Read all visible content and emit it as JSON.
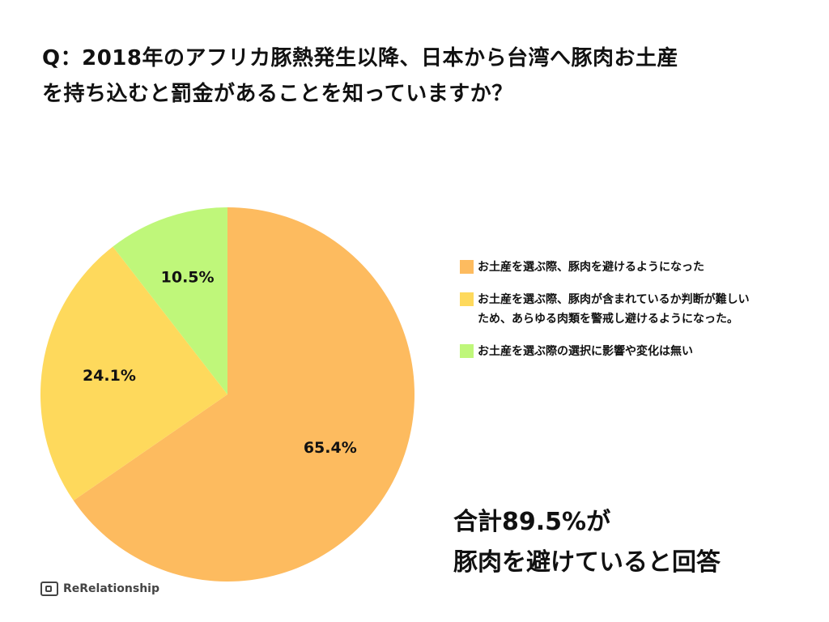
{
  "header": {
    "title_line1": "Q：2018年のアフリカ豚熱発生以降、日本から台湾へ豚肉お土産",
    "title_line2": "を持ち込むと罰金があることを知っていますか？"
  },
  "chart_data": {
    "type": "pie",
    "categories": [
      "お土産を選ぶ際、豚肉を避けるようになった",
      "お土産を選ぶ際、豚肉が含まれているか判断が難しいため、あらゆる肉類を警戒し避けるようになった。",
      "お土産を選ぶ際の選択に影響や変化は無い"
    ],
    "values": [
      65.4,
      24.1,
      10.5
    ],
    "data_labels": [
      "65.4%",
      "24.1%",
      "10.5%"
    ],
    "colors": [
      "#fdbb5f",
      "#fed95c",
      "#bff77a"
    ],
    "label_colors": [
      "#111111",
      "#111111",
      "#ffffff"
    ],
    "start_angle_deg": 0,
    "direction": "clockwise",
    "legend_position": "right"
  },
  "summary": {
    "line1": "合計89.5%が",
    "line2": "豚肉を避けていると回答"
  },
  "brand": {
    "name": "ReRelationship",
    "icon": "rerelationship-logo-icon"
  }
}
